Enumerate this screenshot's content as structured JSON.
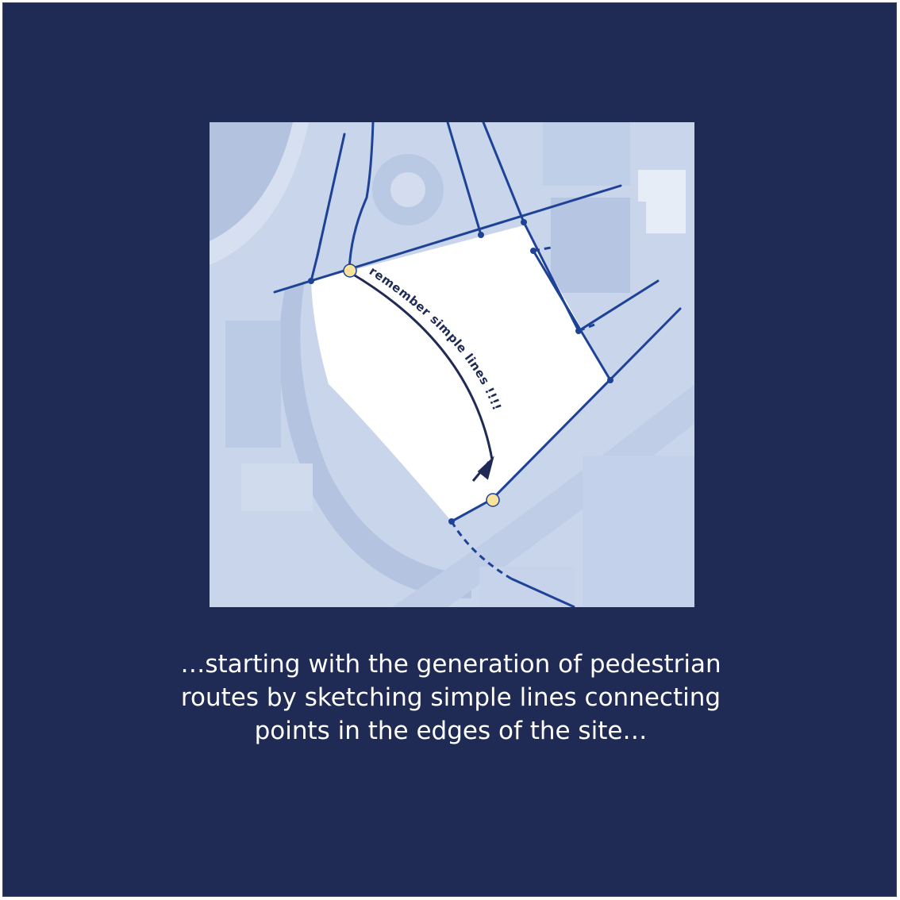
{
  "map": {
    "annotation": "remember    simple    lines    !!!!",
    "colors": {
      "background": "#1f2a55",
      "aerial": "#c9d5ea",
      "site": "#ffffff",
      "route": "#1e4296",
      "annotation": "#1f2a55",
      "edge_point": "#f9e29a"
    }
  },
  "caption": {
    "line1": "…starting with the generation of pedestrian",
    "line2": "routes by sketching simple lines connecting",
    "line3": "points in the edges of the site…"
  }
}
